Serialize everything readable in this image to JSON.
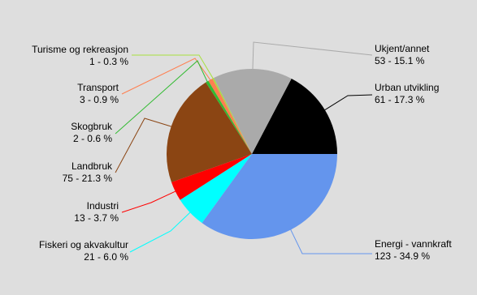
{
  "chart_data": {
    "type": "pie",
    "categories": [
      "Urban utvikling",
      "Ukjent/annet",
      "Turisme og rekreasjon",
      "Transport",
      "Skogbruk",
      "Landbruk",
      "Industri",
      "Fiskeri og akvakultur",
      "Energi - vannkraft"
    ],
    "values": [
      61,
      53,
      1,
      3,
      2,
      75,
      13,
      21,
      123
    ],
    "value_labels": [
      "61 - 17.3 %",
      "53 - 15.1 %",
      "1 - 0.3 %",
      "3 - 0.9 %",
      "2 - 0.6 %",
      "75 - 21.3 %",
      "13 - 3.7 %",
      "21 - 6.0 %",
      "123 - 34.9 %"
    ],
    "colors": [
      "#000000",
      "#aaaaaa",
      "#a8e040",
      "#ff7f50",
      "#33bb33",
      "#8b4513",
      "#ff0000",
      "#00ffff",
      "#6495ed"
    ]
  }
}
